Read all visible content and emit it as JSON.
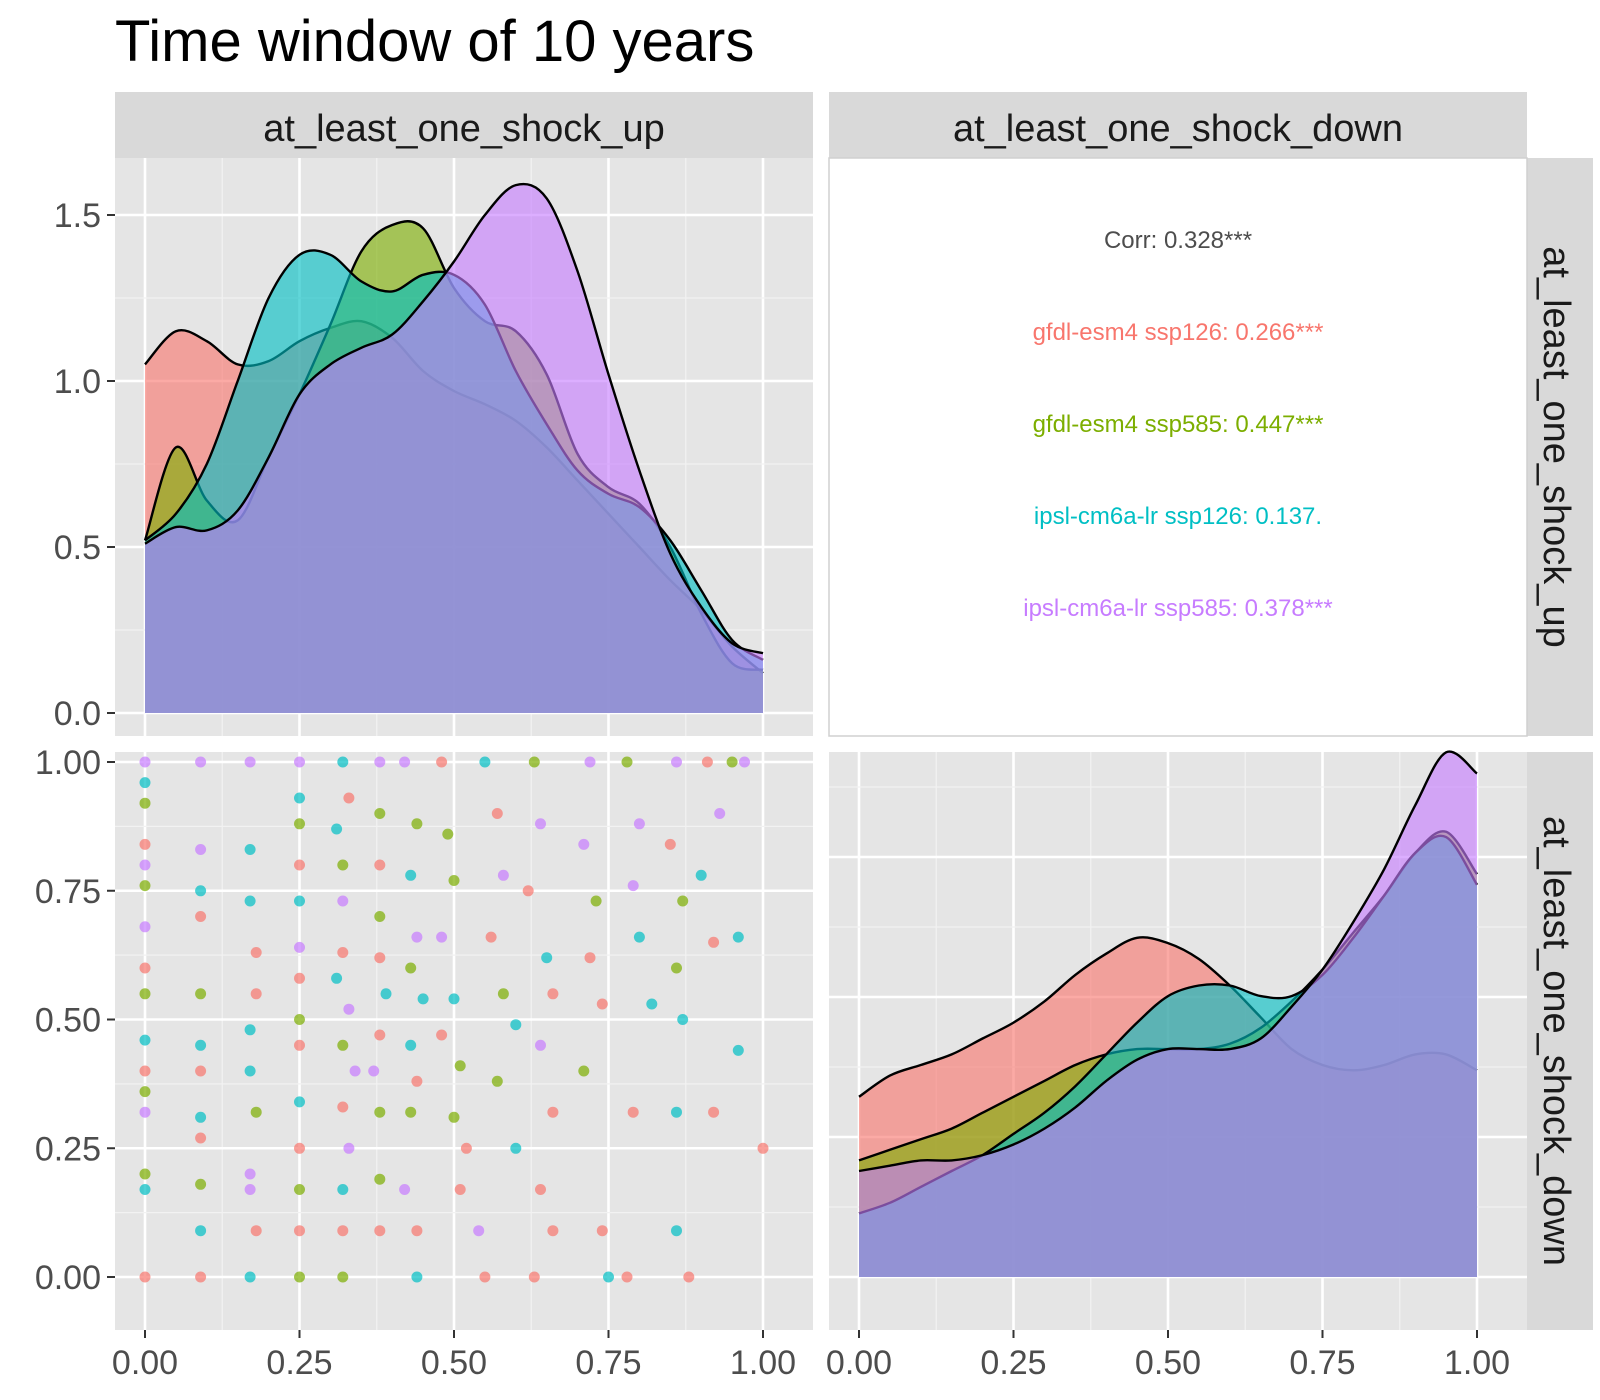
{
  "chart_data": {
    "type": "scatter-matrix",
    "title": "Time window of 10 years",
    "variables": [
      "at_least_one_shock_up",
      "at_least_one_shock_down"
    ],
    "groups": [
      {
        "name": "gfdl-esm4 ssp126",
        "color": "#F8766D"
      },
      {
        "name": "gfdl-esm4 ssp585",
        "color": "#7CAE00"
      },
      {
        "name": "ipsl-cm6a-lr ssp126",
        "color": "#00BFC4"
      },
      {
        "name": "ipsl-cm6a-lr ssp585",
        "color": "#C77CFF"
      }
    ],
    "correlation_panel": {
      "overall": "Corr: 0.328***",
      "overall_color": "#4d4d4d",
      "by_group": [
        {
          "label": "gfdl-esm4 ssp126: 0.266***",
          "color": "#F8766D"
        },
        {
          "label": "gfdl-esm4 ssp585: 0.447***",
          "color": "#7CAE00"
        },
        {
          "label": "ipsl-cm6a-lr ssp126: 0.137.",
          "color": "#00BFC4"
        },
        {
          "label": "ipsl-cm6a-lr ssp585: 0.378***",
          "color": "#C77CFF"
        }
      ]
    },
    "density_up": {
      "xlim": [
        0,
        1
      ],
      "ylim": [
        0,
        1.6
      ],
      "x_ticks": [
        "0.00",
        "0.25",
        "0.50",
        "0.75",
        "1.00"
      ],
      "y_ticks": [
        "0.0",
        "0.5",
        "1.0",
        "1.5"
      ],
      "y_tick_values": [
        0,
        0.5,
        1.0,
        1.5
      ],
      "x": [
        0,
        0.05,
        0.1,
        0.15,
        0.2,
        0.25,
        0.3,
        0.35,
        0.4,
        0.45,
        0.5,
        0.55,
        0.6,
        0.65,
        0.7,
        0.75,
        0.8,
        0.85,
        0.9,
        0.95,
        1.0
      ],
      "series": [
        {
          "name": "gfdl-esm4 ssp126",
          "values": [
            1.05,
            1.15,
            1.12,
            1.05,
            1.06,
            1.12,
            1.16,
            1.18,
            1.13,
            1.03,
            0.97,
            0.93,
            0.88,
            0.8,
            0.7,
            0.6,
            0.5,
            0.4,
            0.31,
            0.2,
            0.12
          ]
        },
        {
          "name": "gfdl-esm4 ssp585",
          "values": [
            0.52,
            0.8,
            0.64,
            0.58,
            0.77,
            0.96,
            1.17,
            1.39,
            1.47,
            1.46,
            1.28,
            1.18,
            1.15,
            1.02,
            0.78,
            0.68,
            0.63,
            0.5,
            0.3,
            0.15,
            0.13
          ]
        },
        {
          "name": "ipsl-cm6a-lr ssp126",
          "values": [
            0.52,
            0.6,
            0.75,
            1.0,
            1.25,
            1.38,
            1.38,
            1.3,
            1.27,
            1.32,
            1.32,
            1.23,
            1.03,
            0.87,
            0.73,
            0.66,
            0.62,
            0.52,
            0.37,
            0.22,
            0.16
          ]
        },
        {
          "name": "ipsl-cm6a-lr ssp585",
          "values": [
            0.51,
            0.56,
            0.55,
            0.61,
            0.77,
            0.96,
            1.05,
            1.1,
            1.14,
            1.24,
            1.36,
            1.5,
            1.59,
            1.55,
            1.33,
            1.02,
            0.73,
            0.48,
            0.32,
            0.21,
            0.18
          ]
        }
      ]
    },
    "density_down": {
      "xlim": [
        0,
        1
      ],
      "ylim": [
        0,
        1.05
      ],
      "x_ticks": [
        "0.00",
        "0.25",
        "0.50",
        "0.75",
        "1.00"
      ],
      "x": [
        0,
        0.05,
        0.1,
        0.15,
        0.2,
        0.25,
        0.3,
        0.35,
        0.4,
        0.45,
        0.5,
        0.55,
        0.6,
        0.65,
        0.7,
        0.75,
        0.8,
        0.85,
        0.9,
        0.95,
        1.0
      ],
      "series": [
        {
          "name": "gfdl-esm4 ssp126",
          "values": [
            0.34,
            0.38,
            0.4,
            0.42,
            0.45,
            0.48,
            0.52,
            0.57,
            0.61,
            0.64,
            0.63,
            0.6,
            0.55,
            0.49,
            0.43,
            0.4,
            0.39,
            0.4,
            0.42,
            0.42,
            0.39
          ]
        },
        {
          "name": "gfdl-esm4 ssp585",
          "values": [
            0.22,
            0.24,
            0.26,
            0.28,
            0.31,
            0.34,
            0.37,
            0.4,
            0.42,
            0.43,
            0.43,
            0.43,
            0.44,
            0.47,
            0.52,
            0.58,
            0.65,
            0.72,
            0.8,
            0.84,
            0.76
          ]
        },
        {
          "name": "ipsl-cm6a-lr ssp126",
          "values": [
            0.12,
            0.14,
            0.17,
            0.2,
            0.23,
            0.27,
            0.31,
            0.36,
            0.42,
            0.48,
            0.53,
            0.55,
            0.55,
            0.53,
            0.53,
            0.57,
            0.64,
            0.72,
            0.8,
            0.83,
            0.74
          ]
        },
        {
          "name": "ipsl-cm6a-lr ssp585",
          "values": [
            0.2,
            0.21,
            0.22,
            0.22,
            0.23,
            0.25,
            0.28,
            0.32,
            0.37,
            0.41,
            0.43,
            0.43,
            0.43,
            0.45,
            0.51,
            0.58,
            0.67,
            0.77,
            0.89,
            0.99,
            0.95
          ]
        }
      ]
    },
    "scatter": {
      "xlim": [
        0,
        1
      ],
      "ylim": [
        0,
        1
      ],
      "xlabel_var": "at_least_one_shock_up",
      "ylabel_var": "at_least_one_shock_down",
      "x_ticks": [
        "0.00",
        "0.25",
        "0.50",
        "0.75",
        "1.00"
      ],
      "y_ticks": [
        "0.00",
        "0.25",
        "0.50",
        "0.75",
        "1.00"
      ],
      "point_sample": [
        {
          "x": 0.0,
          "y": 1.0,
          "g": 3
        },
        {
          "x": 0.0,
          "y": 0.96,
          "g": 2
        },
        {
          "x": 0.0,
          "y": 0.92,
          "g": 1
        },
        {
          "x": 0.0,
          "y": 0.84,
          "g": 0
        },
        {
          "x": 0.0,
          "y": 0.8,
          "g": 3
        },
        {
          "x": 0.0,
          "y": 0.76,
          "g": 1
        },
        {
          "x": 0.0,
          "y": 0.68,
          "g": 3
        },
        {
          "x": 0.0,
          "y": 0.6,
          "g": 0
        },
        {
          "x": 0.0,
          "y": 0.55,
          "g": 1
        },
        {
          "x": 0.0,
          "y": 0.46,
          "g": 2
        },
        {
          "x": 0.0,
          "y": 0.4,
          "g": 0
        },
        {
          "x": 0.0,
          "y": 0.36,
          "g": 1
        },
        {
          "x": 0.0,
          "y": 0.32,
          "g": 3
        },
        {
          "x": 0.0,
          "y": 0.2,
          "g": 1
        },
        {
          "x": 0.0,
          "y": 0.17,
          "g": 2
        },
        {
          "x": 0.0,
          "y": 0.0,
          "g": 0
        },
        {
          "x": 0.09,
          "y": 1.0,
          "g": 3
        },
        {
          "x": 0.09,
          "y": 0.83,
          "g": 3
        },
        {
          "x": 0.09,
          "y": 0.75,
          "g": 2
        },
        {
          "x": 0.09,
          "y": 0.7,
          "g": 0
        },
        {
          "x": 0.09,
          "y": 0.55,
          "g": 1
        },
        {
          "x": 0.09,
          "y": 0.45,
          "g": 2
        },
        {
          "x": 0.09,
          "y": 0.4,
          "g": 0
        },
        {
          "x": 0.09,
          "y": 0.31,
          "g": 2
        },
        {
          "x": 0.09,
          "y": 0.27,
          "g": 0
        },
        {
          "x": 0.09,
          "y": 0.18,
          "g": 1
        },
        {
          "x": 0.09,
          "y": 0.09,
          "g": 2
        },
        {
          "x": 0.09,
          "y": 0.0,
          "g": 0
        },
        {
          "x": 0.17,
          "y": 1.0,
          "g": 3
        },
        {
          "x": 0.17,
          "y": 0.83,
          "g": 2
        },
        {
          "x": 0.17,
          "y": 0.73,
          "g": 2
        },
        {
          "x": 0.18,
          "y": 0.63,
          "g": 0
        },
        {
          "x": 0.18,
          "y": 0.55,
          "g": 0
        },
        {
          "x": 0.17,
          "y": 0.48,
          "g": 2
        },
        {
          "x": 0.17,
          "y": 0.4,
          "g": 2
        },
        {
          "x": 0.18,
          "y": 0.32,
          "g": 1
        },
        {
          "x": 0.17,
          "y": 0.2,
          "g": 3
        },
        {
          "x": 0.17,
          "y": 0.17,
          "g": 3
        },
        {
          "x": 0.18,
          "y": 0.09,
          "g": 0
        },
        {
          "x": 0.17,
          "y": 0.0,
          "g": 2
        },
        {
          "x": 0.25,
          "y": 1.0,
          "g": 3
        },
        {
          "x": 0.25,
          "y": 0.93,
          "g": 2
        },
        {
          "x": 0.25,
          "y": 0.88,
          "g": 1
        },
        {
          "x": 0.25,
          "y": 0.8,
          "g": 0
        },
        {
          "x": 0.25,
          "y": 0.73,
          "g": 2
        },
        {
          "x": 0.25,
          "y": 0.64,
          "g": 3
        },
        {
          "x": 0.25,
          "y": 0.58,
          "g": 0
        },
        {
          "x": 0.25,
          "y": 0.5,
          "g": 1
        },
        {
          "x": 0.25,
          "y": 0.45,
          "g": 0
        },
        {
          "x": 0.25,
          "y": 0.34,
          "g": 2
        },
        {
          "x": 0.25,
          "y": 0.25,
          "g": 0
        },
        {
          "x": 0.25,
          "y": 0.17,
          "g": 1
        },
        {
          "x": 0.25,
          "y": 0.09,
          "g": 0
        },
        {
          "x": 0.25,
          "y": 0.0,
          "g": 1
        },
        {
          "x": 0.32,
          "y": 1.0,
          "g": 2
        },
        {
          "x": 0.33,
          "y": 0.93,
          "g": 0
        },
        {
          "x": 0.31,
          "y": 0.87,
          "g": 2
        },
        {
          "x": 0.32,
          "y": 0.8,
          "g": 1
        },
        {
          "x": 0.32,
          "y": 0.73,
          "g": 3
        },
        {
          "x": 0.32,
          "y": 0.63,
          "g": 0
        },
        {
          "x": 0.31,
          "y": 0.58,
          "g": 2
        },
        {
          "x": 0.33,
          "y": 0.52,
          "g": 3
        },
        {
          "x": 0.32,
          "y": 0.45,
          "g": 1
        },
        {
          "x": 0.34,
          "y": 0.4,
          "g": 3
        },
        {
          "x": 0.32,
          "y": 0.33,
          "g": 0
        },
        {
          "x": 0.33,
          "y": 0.25,
          "g": 3
        },
        {
          "x": 0.32,
          "y": 0.17,
          "g": 2
        },
        {
          "x": 0.32,
          "y": 0.09,
          "g": 0
        },
        {
          "x": 0.32,
          "y": 0.0,
          "g": 1
        },
        {
          "x": 0.38,
          "y": 1.0,
          "g": 3
        },
        {
          "x": 0.38,
          "y": 0.9,
          "g": 1
        },
        {
          "x": 0.38,
          "y": 0.8,
          "g": 0
        },
        {
          "x": 0.38,
          "y": 0.7,
          "g": 1
        },
        {
          "x": 0.38,
          "y": 0.62,
          "g": 0
        },
        {
          "x": 0.39,
          "y": 0.55,
          "g": 2
        },
        {
          "x": 0.38,
          "y": 0.47,
          "g": 0
        },
        {
          "x": 0.37,
          "y": 0.4,
          "g": 3
        },
        {
          "x": 0.38,
          "y": 0.32,
          "g": 1
        },
        {
          "x": 0.38,
          "y": 0.19,
          "g": 1
        },
        {
          "x": 0.38,
          "y": 0.09,
          "g": 0
        },
        {
          "x": 0.42,
          "y": 1.0,
          "g": 3
        },
        {
          "x": 0.44,
          "y": 0.88,
          "g": 1
        },
        {
          "x": 0.43,
          "y": 0.78,
          "g": 2
        },
        {
          "x": 0.44,
          "y": 0.66,
          "g": 3
        },
        {
          "x": 0.43,
          "y": 0.6,
          "g": 1
        },
        {
          "x": 0.45,
          "y": 0.54,
          "g": 2
        },
        {
          "x": 0.43,
          "y": 0.45,
          "g": 2
        },
        {
          "x": 0.44,
          "y": 0.38,
          "g": 0
        },
        {
          "x": 0.43,
          "y": 0.32,
          "g": 1
        },
        {
          "x": 0.42,
          "y": 0.17,
          "g": 3
        },
        {
          "x": 0.44,
          "y": 0.09,
          "g": 0
        },
        {
          "x": 0.44,
          "y": 0.0,
          "g": 2
        },
        {
          "x": 0.48,
          "y": 1.0,
          "g": 0
        },
        {
          "x": 0.49,
          "y": 0.86,
          "g": 1
        },
        {
          "x": 0.5,
          "y": 0.77,
          "g": 1
        },
        {
          "x": 0.48,
          "y": 0.66,
          "g": 3
        },
        {
          "x": 0.5,
          "y": 0.54,
          "g": 2
        },
        {
          "x": 0.48,
          "y": 0.47,
          "g": 0
        },
        {
          "x": 0.51,
          "y": 0.41,
          "g": 1
        },
        {
          "x": 0.5,
          "y": 0.31,
          "g": 1
        },
        {
          "x": 0.52,
          "y": 0.25,
          "g": 0
        },
        {
          "x": 0.51,
          "y": 0.17,
          "g": 0
        },
        {
          "x": 0.54,
          "y": 0.09,
          "g": 3
        },
        {
          "x": 0.55,
          "y": 0.0,
          "g": 0
        },
        {
          "x": 0.55,
          "y": 1.0,
          "g": 2
        },
        {
          "x": 0.57,
          "y": 0.9,
          "g": 0
        },
        {
          "x": 0.58,
          "y": 0.78,
          "g": 3
        },
        {
          "x": 0.56,
          "y": 0.66,
          "g": 0
        },
        {
          "x": 0.58,
          "y": 0.55,
          "g": 1
        },
        {
          "x": 0.6,
          "y": 0.49,
          "g": 2
        },
        {
          "x": 0.57,
          "y": 0.38,
          "g": 1
        },
        {
          "x": 0.6,
          "y": 0.25,
          "g": 2
        },
        {
          "x": 0.63,
          "y": 1.0,
          "g": 1
        },
        {
          "x": 0.64,
          "y": 0.88,
          "g": 3
        },
        {
          "x": 0.62,
          "y": 0.75,
          "g": 0
        },
        {
          "x": 0.65,
          "y": 0.62,
          "g": 2
        },
        {
          "x": 0.66,
          "y": 0.55,
          "g": 0
        },
        {
          "x": 0.64,
          "y": 0.45,
          "g": 3
        },
        {
          "x": 0.66,
          "y": 0.32,
          "g": 0
        },
        {
          "x": 0.64,
          "y": 0.17,
          "g": 0
        },
        {
          "x": 0.63,
          "y": 0.0,
          "g": 0
        },
        {
          "x": 0.66,
          "y": 0.09,
          "g": 0
        },
        {
          "x": 0.72,
          "y": 1.0,
          "g": 3
        },
        {
          "x": 0.71,
          "y": 0.84,
          "g": 3
        },
        {
          "x": 0.73,
          "y": 0.73,
          "g": 1
        },
        {
          "x": 0.72,
          "y": 0.62,
          "g": 0
        },
        {
          "x": 0.74,
          "y": 0.53,
          "g": 0
        },
        {
          "x": 0.71,
          "y": 0.4,
          "g": 1
        },
        {
          "x": 0.74,
          "y": 0.09,
          "g": 0
        },
        {
          "x": 0.75,
          "y": 0.0,
          "g": 2
        },
        {
          "x": 0.78,
          "y": 1.0,
          "g": 1
        },
        {
          "x": 0.8,
          "y": 0.88,
          "g": 3
        },
        {
          "x": 0.79,
          "y": 0.76,
          "g": 3
        },
        {
          "x": 0.8,
          "y": 0.66,
          "g": 2
        },
        {
          "x": 0.82,
          "y": 0.53,
          "g": 2
        },
        {
          "x": 0.79,
          "y": 0.32,
          "g": 0
        },
        {
          "x": 0.78,
          "y": 0.0,
          "g": 0
        },
        {
          "x": 0.86,
          "y": 1.0,
          "g": 3
        },
        {
          "x": 0.85,
          "y": 0.84,
          "g": 0
        },
        {
          "x": 0.87,
          "y": 0.73,
          "g": 1
        },
        {
          "x": 0.86,
          "y": 0.6,
          "g": 1
        },
        {
          "x": 0.87,
          "y": 0.5,
          "g": 2
        },
        {
          "x": 0.86,
          "y": 0.32,
          "g": 2
        },
        {
          "x": 0.86,
          "y": 0.09,
          "g": 2
        },
        {
          "x": 0.88,
          "y": 0.0,
          "g": 0
        },
        {
          "x": 0.91,
          "y": 1.0,
          "g": 0
        },
        {
          "x": 0.9,
          "y": 0.78,
          "g": 2
        },
        {
          "x": 0.92,
          "y": 0.65,
          "g": 0
        },
        {
          "x": 0.93,
          "y": 0.9,
          "g": 3
        },
        {
          "x": 0.95,
          "y": 1.0,
          "g": 1
        },
        {
          "x": 0.96,
          "y": 0.66,
          "g": 2
        },
        {
          "x": 0.96,
          "y": 0.44,
          "g": 2
        },
        {
          "x": 0.92,
          "y": 0.32,
          "g": 0
        },
        {
          "x": 0.97,
          "y": 1.0,
          "g": 3
        },
        {
          "x": 1.0,
          "y": 0.25,
          "g": 0
        }
      ]
    }
  }
}
